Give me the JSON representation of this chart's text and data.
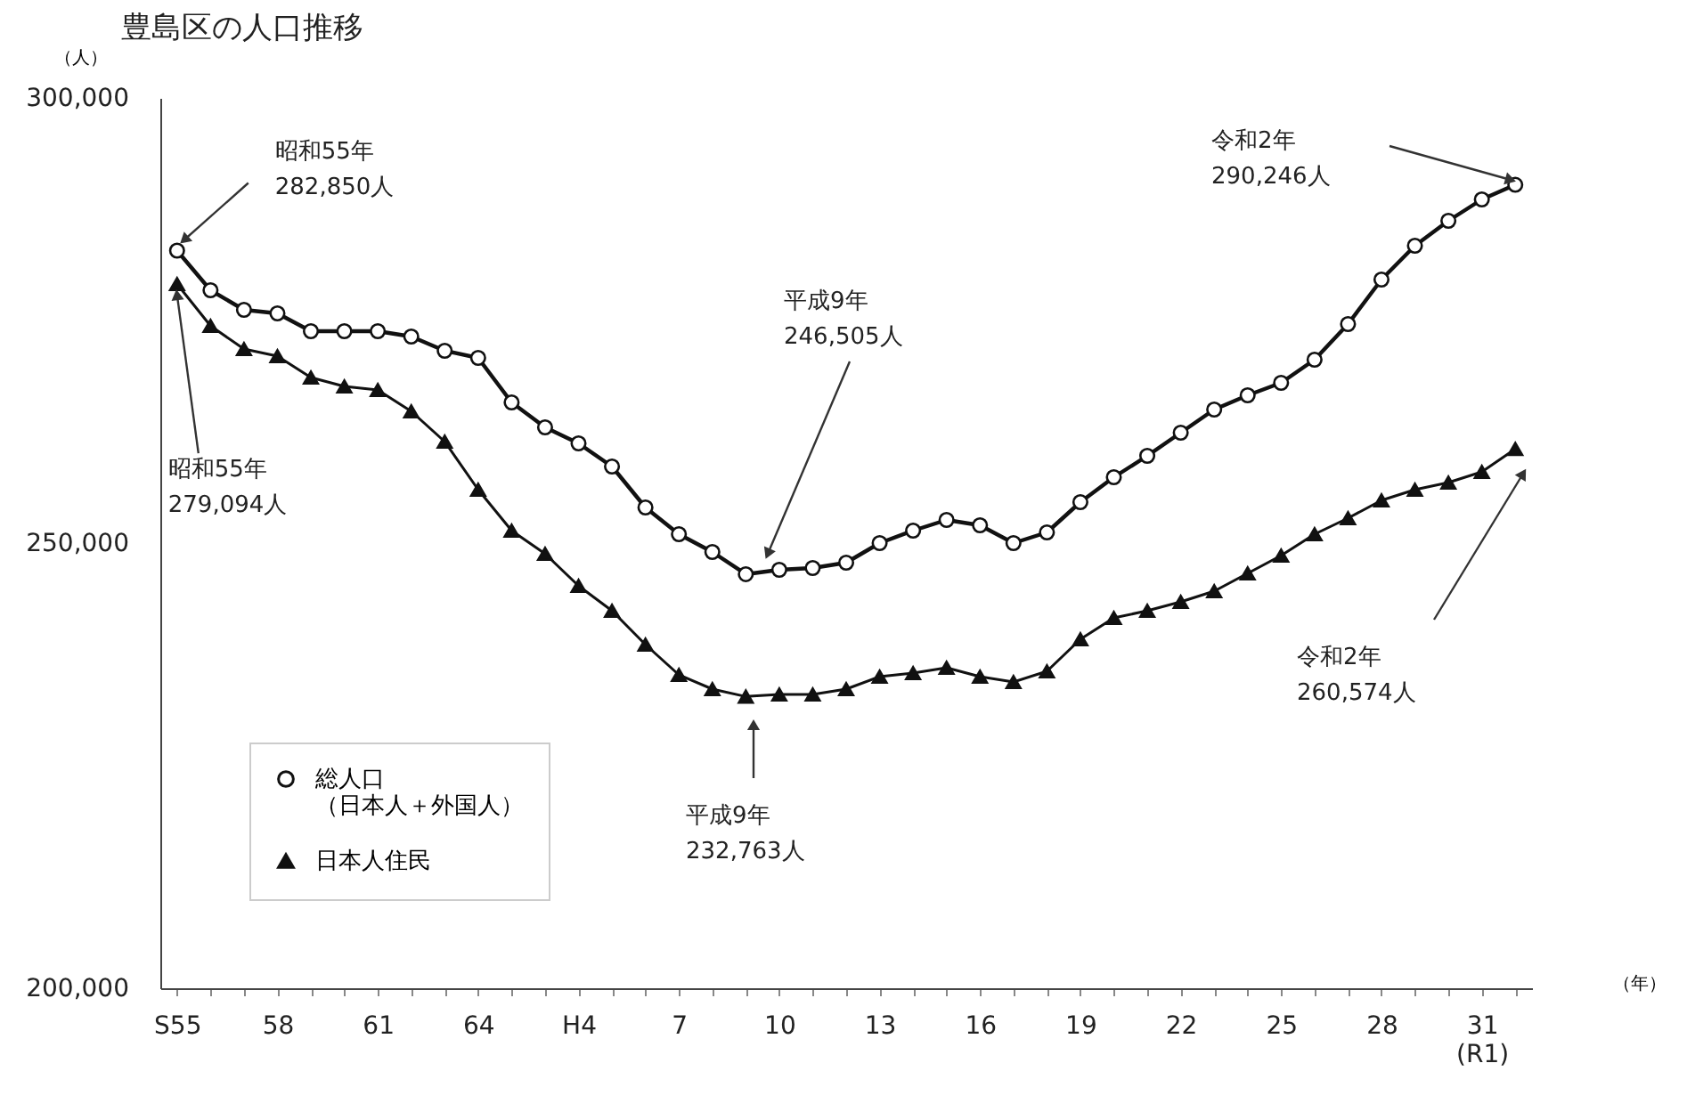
{
  "chart_data": {
    "type": "line",
    "title": "豊島区の人口推移",
    "ylabel": "（人）",
    "xlabel": "（年）",
    "categories": [
      "S55",
      null,
      null,
      "58",
      null,
      null,
      "61",
      null,
      null,
      "64",
      null,
      null,
      "H4",
      null,
      null,
      "7",
      null,
      null,
      "10",
      null,
      null,
      "13",
      null,
      null,
      "16",
      null,
      null,
      "19",
      null,
      null,
      "22",
      null,
      null,
      "25",
      null,
      null,
      "28",
      null,
      null,
      "31\n(R1)",
      null
    ],
    "series": [
      {
        "name": "総人口（日本人＋外国人）",
        "color": "#111111",
        "marker": "circle",
        "values": [
          282850,
          278400,
          276200,
          275800,
          273800,
          273800,
          273800,
          273200,
          271600,
          270800,
          265800,
          263000,
          261200,
          258600,
          254000,
          251000,
          249000,
          246505,
          247000,
          247200,
          247800,
          250000,
          251400,
          252600,
          252000,
          250000,
          251200,
          254600,
          257400,
          259800,
          262400,
          265000,
          266600,
          268000,
          270600,
          274600,
          279600,
          283400,
          286200,
          288600,
          290246
        ]
      },
      {
        "name": "日本人住民",
        "color": "#111111",
        "marker": "triangle",
        "values": [
          279094,
          274400,
          271800,
          271000,
          268600,
          267600,
          267200,
          264800,
          261400,
          256000,
          251400,
          248800,
          245200,
          242400,
          238600,
          235200,
          233600,
          232763,
          233000,
          233000,
          233600,
          235000,
          235400,
          236000,
          235000,
          234400,
          235600,
          239200,
          241600,
          242400,
          243400,
          244600,
          246600,
          248600,
          251000,
          252800,
          254800,
          256000,
          256800,
          258000,
          260574
        ]
      }
    ],
    "ylim": [
      200000,
      300000
    ],
    "yticks": [
      {
        "value": 200000,
        "label": "200,000"
      },
      {
        "value": 250000,
        "label": "250,000"
      },
      {
        "value": 300000,
        "label": "300,000"
      }
    ],
    "annotations": [
      {
        "text": "昭和55年\n282,850人",
        "x": "S55",
        "y": 282850
      },
      {
        "text": "昭和55年\n279,094人",
        "x": "S55",
        "y": 279094
      },
      "平成9年\n246,505人",
      "平成9年\n232,763人",
      "令和2年\n290,246人",
      "令和2年\n260,574人"
    ],
    "grid": false,
    "legend": "bottom left"
  }
}
